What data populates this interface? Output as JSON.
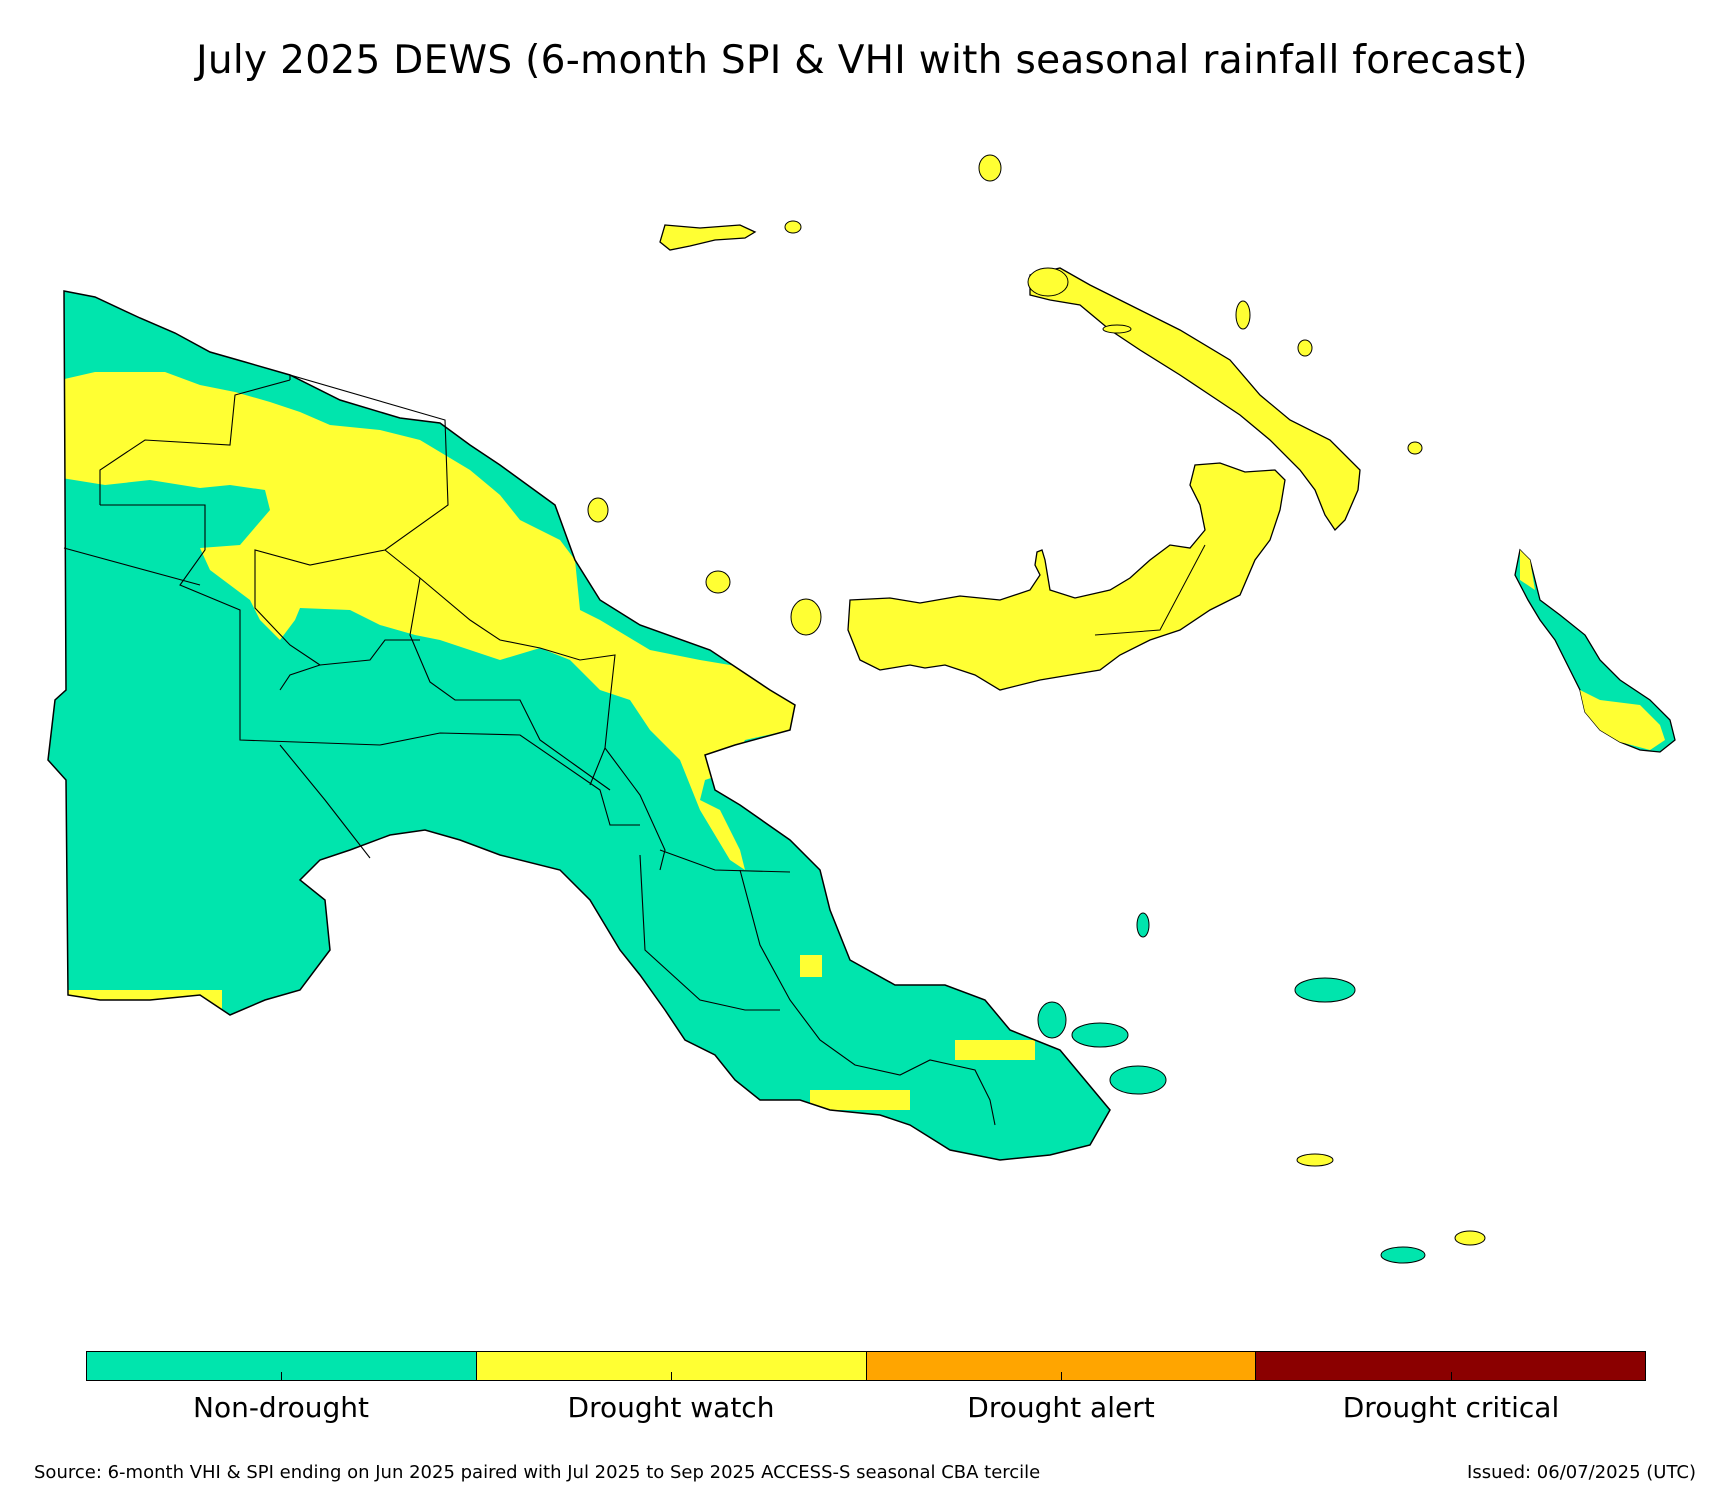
{
  "title": "July 2025 DEWS (6-month SPI & VHI with seasonal rainfall forecast)",
  "colors": {
    "non_drought": "#00e5ad",
    "drought_watch": "#ffff33",
    "drought_alert": "#ffa500",
    "drought_critical": "#8b0000",
    "border": "#000000",
    "ocean": "#ffffff"
  },
  "legend": [
    {
      "label": "Non-drought",
      "color": "#00e5ad"
    },
    {
      "label": "Drought watch",
      "color": "#ffff33"
    },
    {
      "label": "Drought alert",
      "color": "#ffa500"
    },
    {
      "label": "Drought critical",
      "color": "#8b0000"
    }
  ],
  "footer": {
    "source": "Source: 6-month VHI & SPI ending on Jun 2025 paired with Jul 2025 to Sep 2025 ACCESS-S seasonal CBA tercile",
    "issued": "Issued: 06/07/2025 (UTC)"
  }
}
